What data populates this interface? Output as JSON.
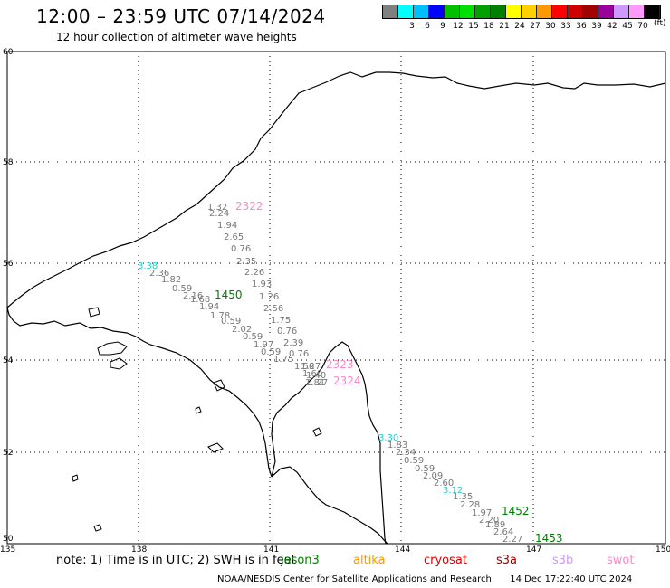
{
  "header": {
    "title": "12:00 – 23:59 UTC 07/14/2024",
    "subtitle": "12 hour collection of altimeter wave heights"
  },
  "color_scale": {
    "unit": "(ft)",
    "bins": [
      {
        "label": "",
        "color": "#808080"
      },
      {
        "label": "3",
        "color": "#00ffff"
      },
      {
        "label": "6",
        "color": "#00bfff"
      },
      {
        "label": "9",
        "color": "#0000ff"
      },
      {
        "label": "12",
        "color": "#00c000"
      },
      {
        "label": "15",
        "color": "#00e000"
      },
      {
        "label": "18",
        "color": "#00a000"
      },
      {
        "label": "21",
        "color": "#008000"
      },
      {
        "label": "24",
        "color": "#ffff00"
      },
      {
        "label": "27",
        "color": "#ffd000"
      },
      {
        "label": "30",
        "color": "#ff9900"
      },
      {
        "label": "33",
        "color": "#ff0000"
      },
      {
        "label": "36",
        "color": "#d00000"
      },
      {
        "label": "39",
        "color": "#a00000"
      },
      {
        "label": "42",
        "color": "#990099"
      },
      {
        "label": "45",
        "color": "#cc99ff"
      },
      {
        "label": "70",
        "color": "#ff99ff"
      },
      {
        "label": "",
        "color": "#000000"
      }
    ]
  },
  "map": {
    "lat_labels": [
      "60",
      "58",
      "56",
      "54",
      "52",
      "50"
    ],
    "lon_labels": [
      "135",
      "138",
      "141",
      "144",
      "147",
      "150"
    ],
    "pass_labels": [
      {
        "text": "2322",
        "color": "#ff88cc"
      },
      {
        "text": "1450",
        "color": "#008000"
      },
      {
        "text": "2323",
        "color": "#ff88cc"
      },
      {
        "text": "2324",
        "color": "#ff88cc"
      },
      {
        "text": "1452",
        "color": "#008000"
      },
      {
        "text": "1453",
        "color": "#008000"
      }
    ],
    "track_gray_2322": [
      "1.32",
      "2.24",
      "1.94",
      "2.65",
      "0.76",
      "2.35",
      "2.26",
      "1.93",
      "1.26",
      "2.56",
      "1.75",
      "0.76",
      "2.39",
      "0.76",
      "1.56",
      "1.27",
      "1.60",
      "1.40",
      "1.27",
      "1.81"
    ],
    "track_gray_1450": [
      "2.36",
      "1.82",
      "0.59",
      "2.16",
      "1.68",
      "1.94",
      "1.78",
      "0.59",
      "2.02",
      "0.59",
      "1.97",
      "0.59",
      "1.75"
    ],
    "track_gray_1452": [
      "1.83",
      "2.34",
      "0.59",
      "0.59",
      "2.09",
      "2.60",
      "1.35",
      "2.28",
      "1.97",
      "2.20",
      "1.89",
      "2.64",
      "2.27"
    ],
    "track_cyan": [
      "3.38",
      "3.30",
      "3.12"
    ]
  },
  "note": {
    "prefix": "note: 1) Time is in UTC; 2) SWH is in feet",
    "satellites": [
      {
        "name": "jason3",
        "color": "#008000"
      },
      {
        "name": "altika",
        "color": "#ff9900"
      },
      {
        "name": "cryosat",
        "color": "#dd0000"
      },
      {
        "name": "s3a",
        "color": "#990000"
      },
      {
        "name": "s3b",
        "color": "#cc99ff"
      },
      {
        "name": "swot",
        "color": "#ff88cc"
      }
    ]
  },
  "footer": {
    "credit": "NOAA/NESDIS Center for Satellite Applications and Research",
    "timestamp": "14 Dec 17:22:40 UTC 2024"
  }
}
